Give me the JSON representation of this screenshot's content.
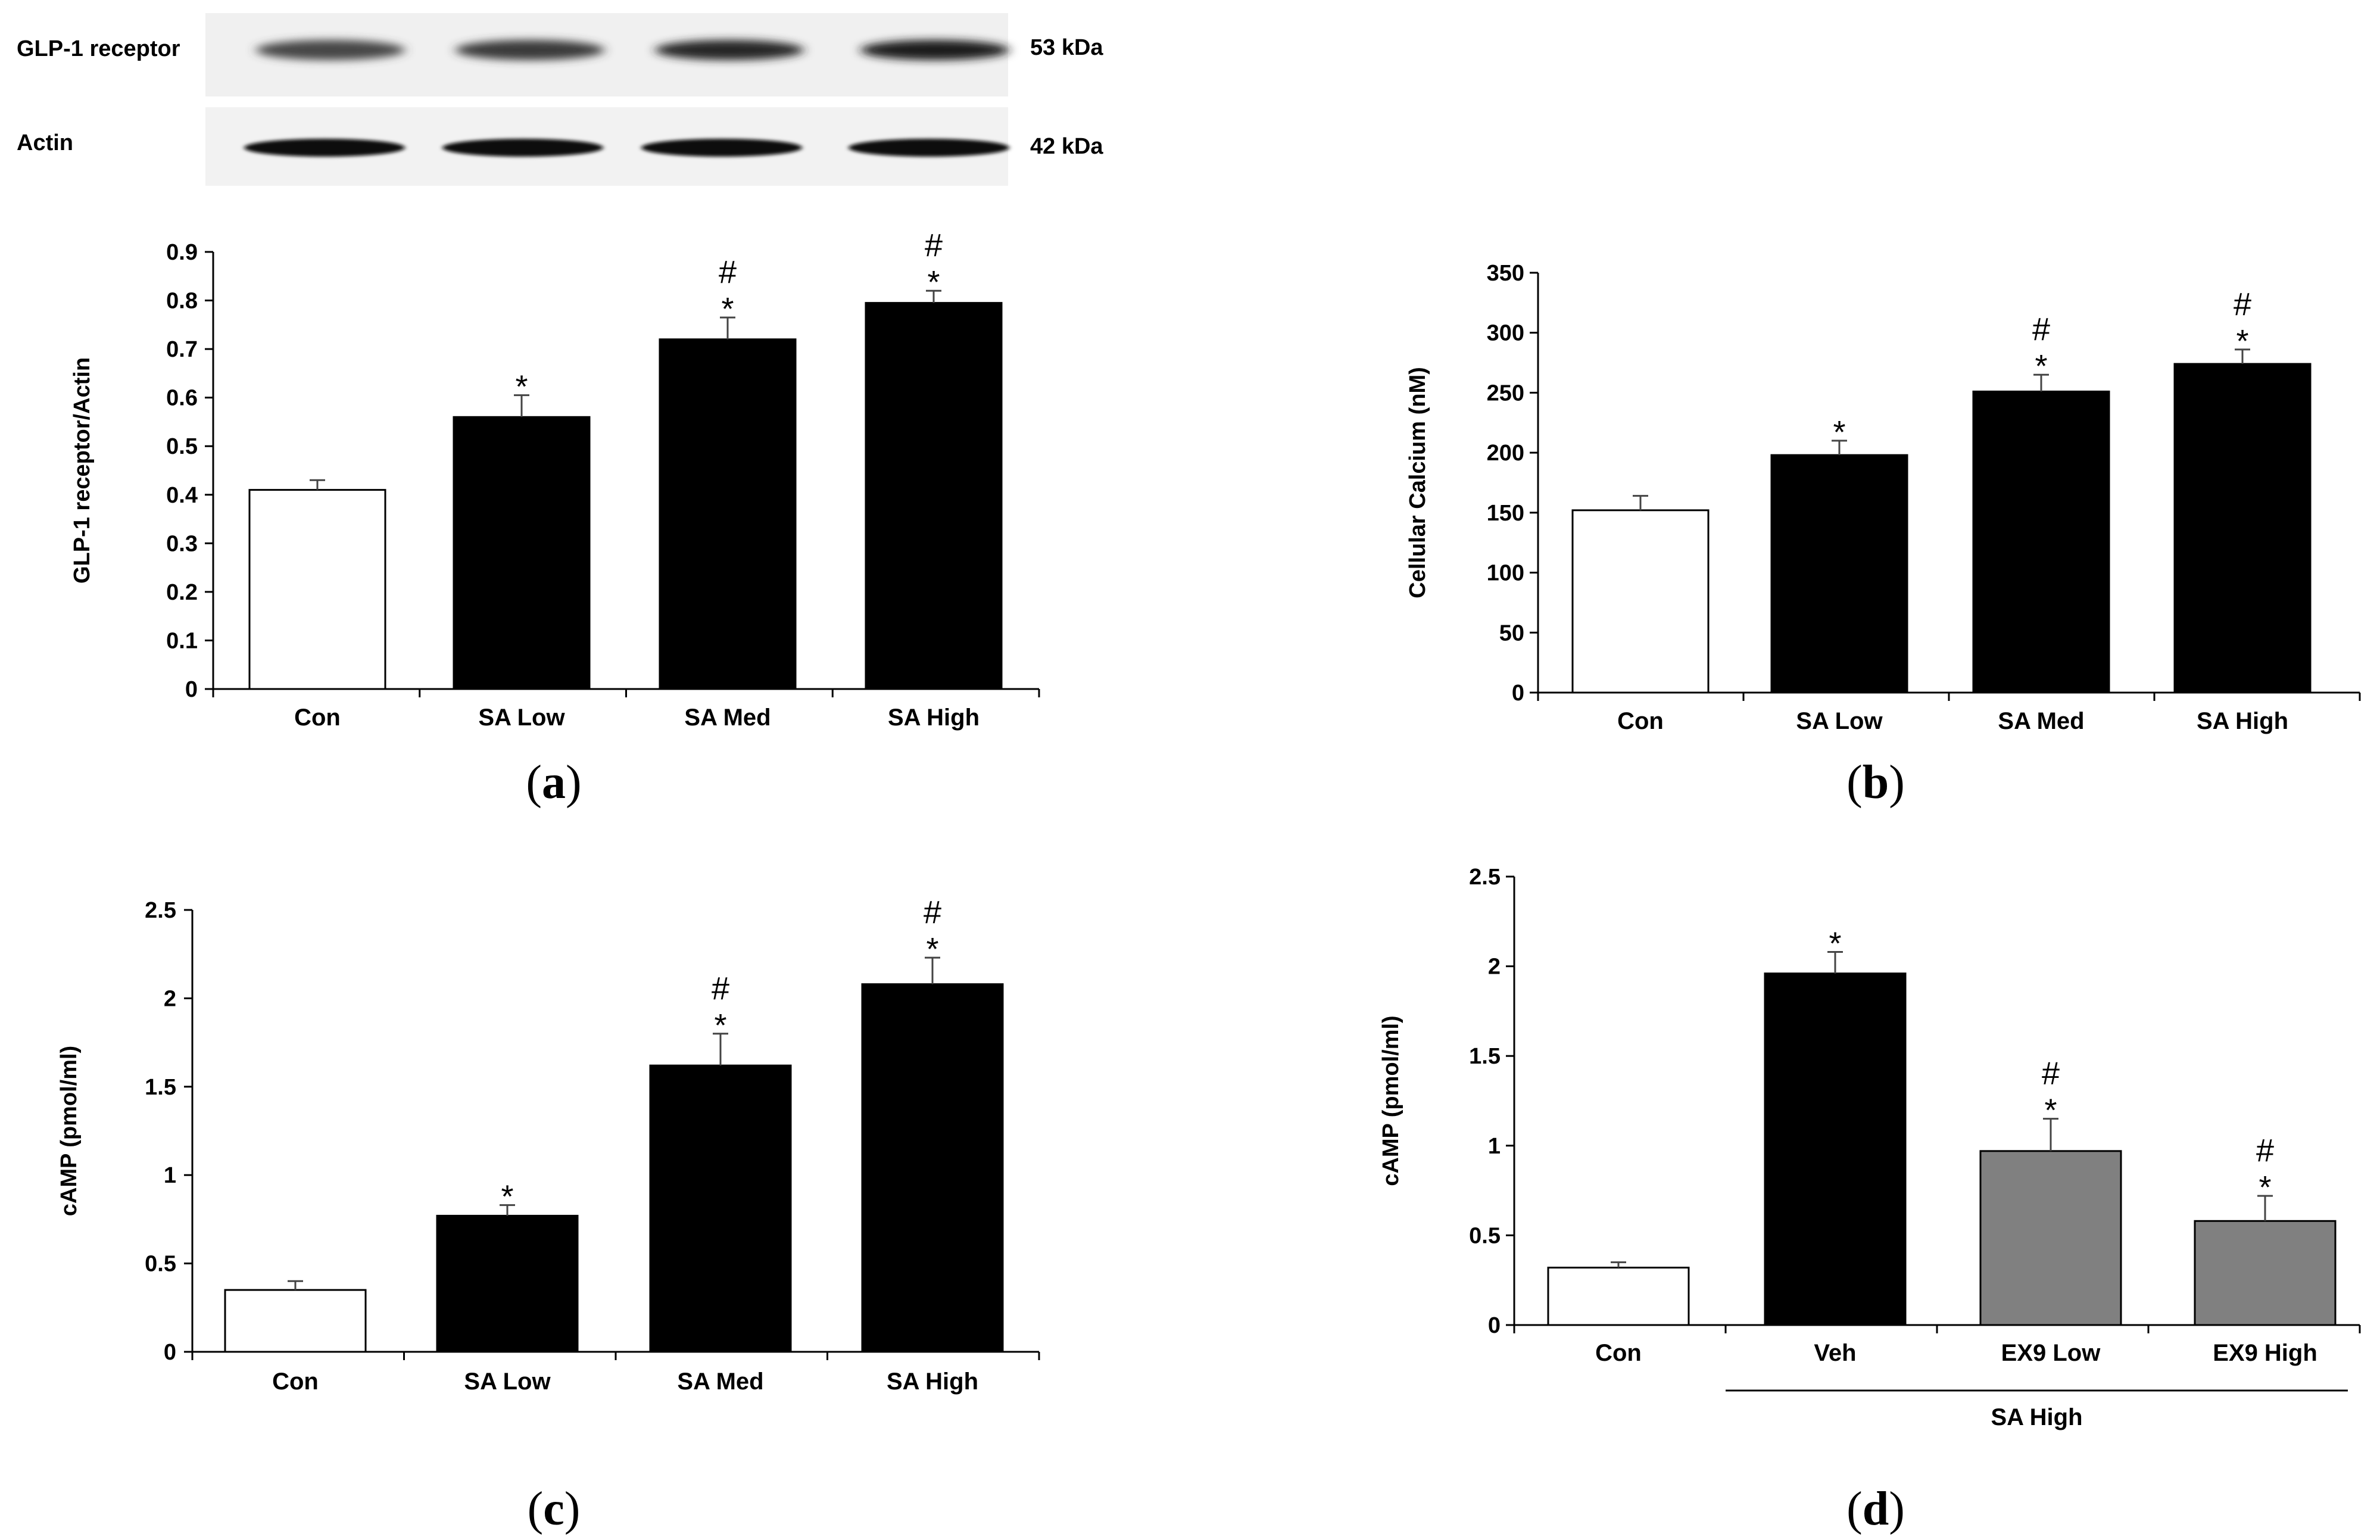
{
  "figure": {
    "blot": {
      "rows": [
        {
          "protein": "GLP-1 receptor",
          "weight": "53 kDa",
          "intensities": [
            0.5,
            0.6,
            0.75,
            0.85
          ],
          "band": "diffuse"
        },
        {
          "protein": "Actin",
          "weight": "42 kDa",
          "intensities": [
            1,
            1,
            1,
            1
          ],
          "band": "sharp"
        }
      ]
    },
    "panel_labels": {
      "a": {
        "open": "(",
        "letter": "a",
        "close": ")"
      },
      "b": {
        "open": "(",
        "letter": "b",
        "close": ")"
      },
      "c": {
        "open": "(",
        "letter": "c",
        "close": ")"
      },
      "d": {
        "open": "(",
        "letter": "d",
        "close": ")"
      }
    }
  },
  "chart_data": [
    {
      "id": "a",
      "type": "bar",
      "title": "",
      "ylabel": "GLP-1 receptor/Actin",
      "xlabel": "",
      "categories": [
        "Con",
        "SA Low",
        "SA Med",
        "SA High"
      ],
      "values": [
        0.41,
        0.56,
        0.72,
        0.795
      ],
      "errors": [
        0.02,
        0.045,
        0.045,
        0.025
      ],
      "fills": [
        "#ffffff",
        "#000000",
        "#000000",
        "#000000"
      ],
      "marks": [
        [],
        [
          "*"
        ],
        [
          "*",
          "#"
        ],
        [
          "*",
          "#"
        ]
      ],
      "ylim": [
        0,
        0.9
      ],
      "yticks": [
        "0",
        "0.1",
        "0.2",
        "0.3",
        "0.4",
        "0.5",
        "0.6",
        "0.7",
        "0.8",
        "0.9"
      ],
      "grid": false,
      "legend": "none"
    },
    {
      "id": "b",
      "type": "bar",
      "title": "",
      "ylabel": "Cellular Calcium (nM)",
      "xlabel": "",
      "categories": [
        "Con",
        "SA Low",
        "SA Med",
        "SA High"
      ],
      "values": [
        152,
        198,
        251,
        274
      ],
      "errors": [
        12,
        12,
        14,
        12
      ],
      "fills": [
        "#ffffff",
        "#000000",
        "#000000",
        "#000000"
      ],
      "marks": [
        [],
        [
          "*"
        ],
        [
          "*",
          "#"
        ],
        [
          "*",
          "#"
        ]
      ],
      "ylim": [
        0,
        350
      ],
      "yticks": [
        "0",
        "50",
        "100",
        "150",
        "200",
        "250",
        "300",
        "350"
      ],
      "grid": false,
      "legend": "none"
    },
    {
      "id": "c",
      "type": "bar",
      "title": "",
      "ylabel": "cAMP (pmol/ml)",
      "xlabel": "",
      "categories": [
        "Con",
        "SA Low",
        "SA Med",
        "SA High"
      ],
      "values": [
        0.35,
        0.77,
        1.62,
        2.08
      ],
      "errors": [
        0.05,
        0.06,
        0.18,
        0.15
      ],
      "fills": [
        "#ffffff",
        "#000000",
        "#000000",
        "#000000"
      ],
      "marks": [
        [],
        [
          "*"
        ],
        [
          "*",
          "#"
        ],
        [
          "*",
          "#"
        ]
      ],
      "ylim": [
        0,
        2.5
      ],
      "yticks": [
        "0",
        "0.5",
        "1",
        "1.5",
        "2",
        "2.5"
      ],
      "grid": false,
      "legend": "none"
    },
    {
      "id": "d",
      "type": "bar",
      "title": "",
      "ylabel": "cAMP (pmol/ml)",
      "xlabel": "",
      "categories": [
        "Con",
        "Veh",
        "EX9 Low",
        "EX9 High"
      ],
      "values": [
        0.32,
        1.96,
        0.97,
        0.58
      ],
      "errors": [
        0.03,
        0.12,
        0.18,
        0.14
      ],
      "fills": [
        "#ffffff",
        "#000000",
        "#808080",
        "#808080"
      ],
      "marks": [
        [],
        [
          "*"
        ],
        [
          "*",
          "#"
        ],
        [
          "*",
          "#"
        ]
      ],
      "ylim": [
        0,
        2.5
      ],
      "yticks": [
        "0",
        "0.5",
        "1",
        "1.5",
        "2",
        "2.5"
      ],
      "group_label": "SA High",
      "group_span": [
        1,
        3
      ],
      "grid": false,
      "legend": "none"
    }
  ]
}
